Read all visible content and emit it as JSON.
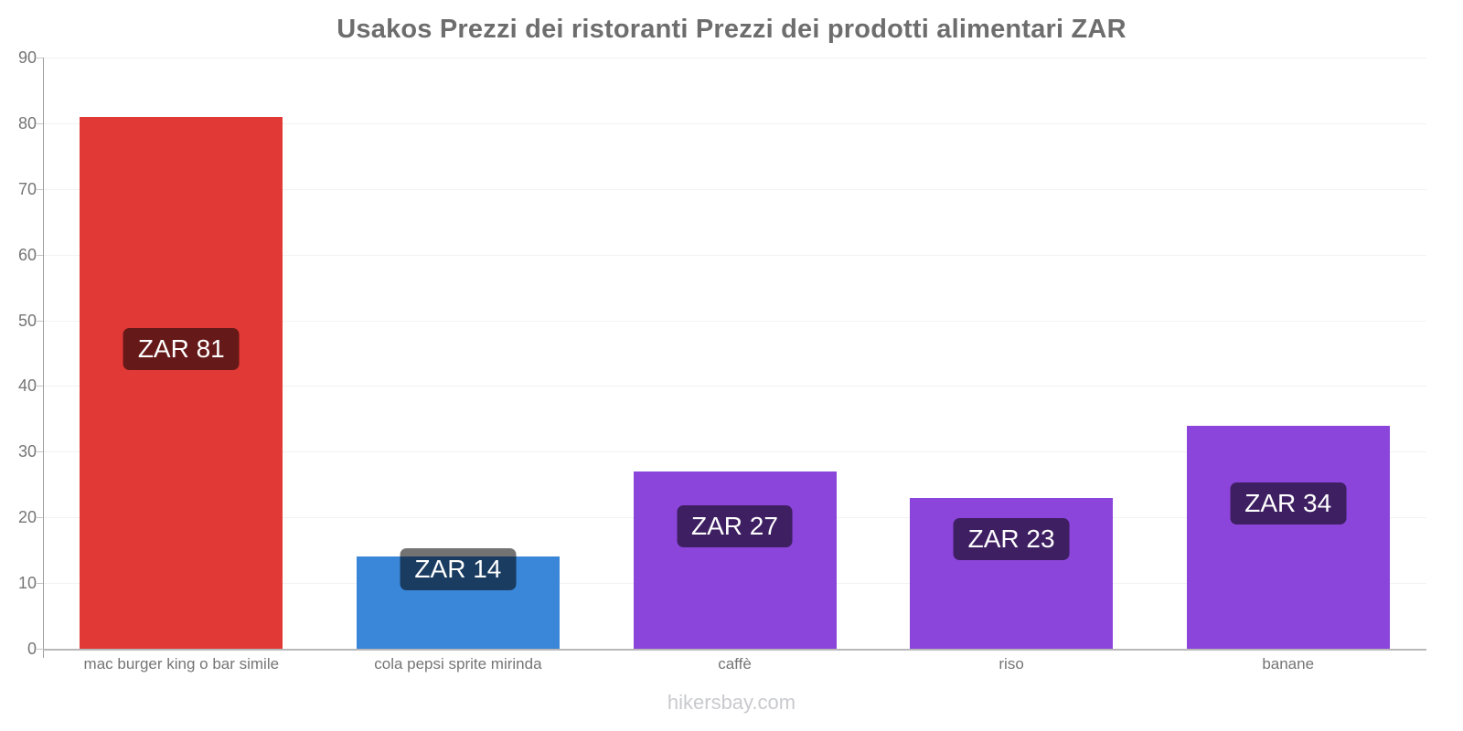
{
  "page": {
    "background": "#ffffff"
  },
  "chart_data": {
    "type": "bar",
    "title": "Usakos Prezzi dei ristoranti Prezzi dei prodotti alimentari ZAR",
    "categories": [
      "mac burger king o bar simile",
      "cola pepsi sprite mirinda",
      "caffè",
      "riso",
      "banane"
    ],
    "values": [
      81,
      14,
      27,
      23,
      34
    ],
    "value_labels": [
      "ZAR 81",
      "ZAR 14",
      "ZAR 27",
      "ZAR 23",
      "ZAR 34"
    ],
    "bar_colors": [
      "#e03936",
      "#3a86d8",
      "#8b45da",
      "#8b45da",
      "#8b45da"
    ],
    "xlabel": "",
    "ylabel": "",
    "ylim": [
      0,
      90
    ],
    "yticks": [
      0,
      10,
      20,
      30,
      40,
      50,
      60,
      70,
      80,
      90
    ],
    "grid": true,
    "legend": false,
    "currency": "ZAR",
    "value_label_style": {
      "background": "rgba(0,0,0,0.55)",
      "text_color": "#ffffff"
    }
  },
  "colors": {
    "title_text": "#6d6d6d",
    "axis_text": "#757575",
    "axis_line": "#9e9e9e",
    "baseline": "#b8b8b8",
    "gridline": "#f2f2f2",
    "footer_text": "#c9cace"
  },
  "footer": {
    "text": "hikersbay.com"
  }
}
